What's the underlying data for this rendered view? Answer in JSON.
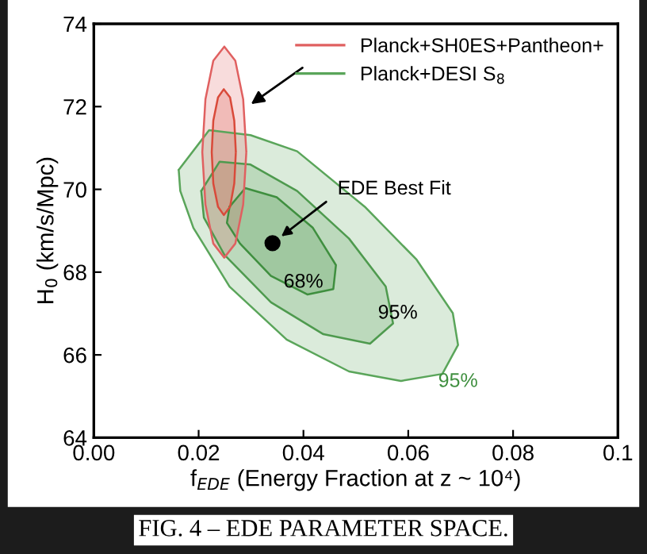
{
  "chart_data": {
    "type": "area",
    "xlabel": "f$_{EDE}$ (Energy Fraction at z ~ 10⁴)",
    "ylabel": "H$_{0}$ (km/s/Mpc)",
    "xlim": [
      0,
      0.1
    ],
    "ylim": [
      64,
      74
    ],
    "xticks": [
      {
        "value": 0,
        "label": "0.00"
      },
      {
        "value": 0.02,
        "label": "0.02"
      },
      {
        "value": 0.04,
        "label": "0.04"
      },
      {
        "value": 0.06,
        "label": "0.06"
      },
      {
        "value": 0.08,
        "label": "0.08"
      },
      {
        "value": 0.1,
        "label": "0.1"
      }
    ],
    "yticks": [
      64,
      66,
      68,
      70,
      72,
      74
    ],
    "grid": false,
    "legend": "top right",
    "marker": "none",
    "line_style": "solid",
    "series": [
      {
        "name": "Planck+DESI S$_{8}$",
        "color": "#5aa55a",
        "x": [
          0.0162,
          0.022,
          0.0299,
          0.0388,
          0.0517,
          0.0616,
          0.0685,
          0.0695,
          0.0665,
          0.0586,
          0.0487,
          0.0368,
          0.0259,
          0.019,
          0.0165
        ],
        "values": [
          70.47,
          71.43,
          71.31,
          70.92,
          69.58,
          68.3,
          67.01,
          66.24,
          65.54,
          65.37,
          65.6,
          66.37,
          67.65,
          69.07,
          69.96
        ]
      },
      {
        "color": "#4e9a4e",
        "x": [
          0.0205,
          0.024,
          0.0299,
          0.0388,
          0.0487,
          0.0557,
          0.0571,
          0.0527,
          0.0438,
          0.0338,
          0.0249,
          0.021
        ],
        "values": [
          69.96,
          70.67,
          70.6,
          69.96,
          68.81,
          67.65,
          66.76,
          66.27,
          66.5,
          67.27,
          68.42,
          69.32
        ]
      },
      {
        "color": "#3f8f3f",
        "x": [
          0.0259,
          0.0289,
          0.0349,
          0.0418,
          0.0462,
          0.0457,
          0.0408,
          0.0338,
          0.0279,
          0.0254
        ],
        "values": [
          69.58,
          70.03,
          69.81,
          69.07,
          68.17,
          67.59,
          67.46,
          67.91,
          68.69,
          69.19
        ]
      },
      {
        "name": "Planck+SH0ES+Pantheon+",
        "color": "#e06060",
        "x": [
          0.0291,
          0.0285,
          0.027,
          0.0249,
          0.0228,
          0.0213,
          0.0207,
          0.0213,
          0.0228,
          0.0249,
          0.027,
          0.0285
        ],
        "values": [
          70.9,
          72.18,
          73.11,
          73.45,
          73.11,
          72.18,
          70.9,
          69.63,
          68.69,
          68.35,
          68.69,
          69.63
        ]
      },
      {
        "color": "#d94a3a",
        "x": [
          0.0271,
          0.0268,
          0.026,
          0.0248,
          0.0237,
          0.0228,
          0.0225,
          0.0228,
          0.0237,
          0.0248,
          0.026,
          0.0268
        ],
        "values": [
          70.9,
          71.66,
          72.22,
          72.42,
          72.22,
          71.66,
          70.9,
          70.14,
          69.58,
          69.38,
          69.58,
          70.14
        ]
      },
      {
        "type": "scatter",
        "marker": "circle",
        "color": "#000000",
        "x": [
          0.0341
        ],
        "values": [
          68.7
        ]
      }
    ],
    "annotations": [
      {
        "text": "EDE Best Fit",
        "x": 0.0341,
        "y": 68.7
      },
      {
        "text": "68%",
        "x": 0.04,
        "y": 67.75
      },
      "95%",
      "95%",
      "FIG. 4 – EDE PARAMETER SPACE."
    ]
  }
}
